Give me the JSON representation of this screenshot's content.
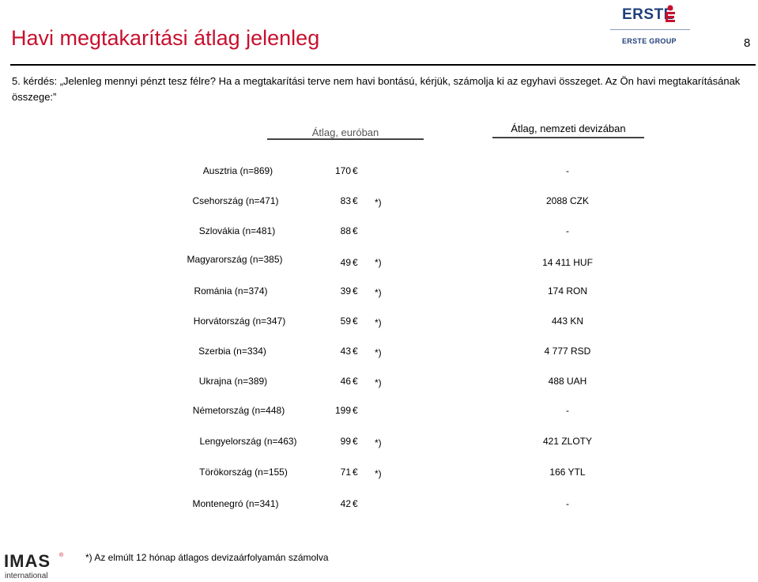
{
  "header": {
    "title": "Havi megtakarítási átlag jelenleg",
    "page_number": "8",
    "logo": {
      "brand": "ERSTE",
      "group": "ERSTE GROUP",
      "color": "#1f3f7a",
      "accent": "#c8102e"
    }
  },
  "question": "5. kérdés: „Jelenleg mennyi pénzt tesz félre? Ha a megtakarítási terve nem havi bontású, kérjük, számolja ki az egyhavi összeget. Az Ön havi megtakarításának összege:”",
  "columns": {
    "eur": "Átlag, euróban",
    "national": "Átlag, nemzeti devizában"
  },
  "rows": [
    {
      "country": "Ausztria (n=869)",
      "eur": "170",
      "star": "",
      "national": "-"
    },
    {
      "country": "Csehország (n=471)",
      "eur": "83",
      "star": "*)",
      "national": "2088 CZK"
    },
    {
      "country": "Szlovákia (n=481)",
      "eur": "88",
      "star": "",
      "national": "-"
    },
    {
      "country": "Magyarország (n=385)",
      "eur": "49",
      "star": "*)",
      "national": "14 411 HUF"
    },
    {
      "country": "Románia (n=374)",
      "eur": "39",
      "star": "*)",
      "national": "174 RON"
    },
    {
      "country": "Horvátország (n=347)",
      "eur": "59",
      "star": "*)",
      "national": "443 KN"
    },
    {
      "country": "Szerbia (n=334)",
      "eur": "43",
      "star": "*)",
      "national": "4 777 RSD"
    },
    {
      "country": "Ukrajna (n=389)",
      "eur": "46",
      "star": "*)",
      "national": "488 UAH"
    },
    {
      "country": "Németország (n=448)",
      "eur": "199",
      "star": "",
      "national": "-"
    },
    {
      "country": "Lengyelország (n=463)",
      "eur": "99",
      "star": "*)",
      "national": "421 ZLOTY"
    },
    {
      "country": "Törökország (n=155)",
      "eur": "71",
      "star": "*)",
      "national": "166 YTL"
    },
    {
      "country": "Montenegró (n=341)",
      "eur": "42",
      "star": "",
      "national": "-"
    }
  ],
  "euro_symbol": "€",
  "footnote": "*) Az elmúlt 12 hónap átlagos devizaárfolyamán számolva",
  "footer_logo": {
    "brand": "IMAS",
    "registered": "®",
    "sub": "international"
  }
}
